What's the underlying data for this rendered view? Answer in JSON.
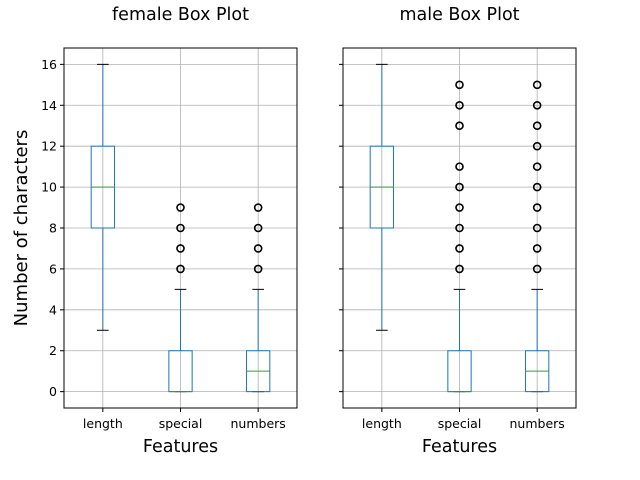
{
  "ylabel": "Number of characters",
  "colors": {
    "box": "#1f77b4",
    "median": "#2ca02c",
    "grid": "#b0b0b0",
    "axes": "#000000",
    "background": "#ffffff"
  },
  "chart_data": [
    {
      "type": "box",
      "title": "female Box Plot",
      "xlabel": "Features",
      "ylabel": "Number of characters",
      "ylim": [
        -0.8,
        16.8
      ],
      "yticks": [
        0,
        2,
        4,
        6,
        8,
        10,
        12,
        14,
        16
      ],
      "grid": true,
      "categories": [
        "length",
        "special",
        "numbers"
      ],
      "boxes": [
        {
          "whisker_low": 3,
          "q1": 8,
          "median": 10,
          "q3": 12,
          "whisker_high": 16,
          "outliers": []
        },
        {
          "whisker_low": 0,
          "q1": 0,
          "median": 0,
          "q3": 2,
          "whisker_high": 5,
          "outliers": [
            6,
            7,
            8,
            9
          ]
        },
        {
          "whisker_low": 0,
          "q1": 0,
          "median": 1,
          "q3": 2,
          "whisker_high": 5,
          "outliers": [
            6,
            7,
            8,
            9
          ]
        }
      ]
    },
    {
      "type": "box",
      "title": "male Box Plot",
      "xlabel": "Features",
      "ylabel": "",
      "ylim": [
        -0.8,
        16.8
      ],
      "yticks": [
        0,
        2,
        4,
        6,
        8,
        10,
        12,
        14,
        16
      ],
      "grid": true,
      "categories": [
        "length",
        "special",
        "numbers"
      ],
      "boxes": [
        {
          "whisker_low": 3,
          "q1": 8,
          "median": 10,
          "q3": 12,
          "whisker_high": 16,
          "outliers": []
        },
        {
          "whisker_low": 0,
          "q1": 0,
          "median": 0,
          "q3": 2,
          "whisker_high": 5,
          "outliers": [
            6,
            7,
            8,
            9,
            10,
            11,
            13,
            14,
            15
          ]
        },
        {
          "whisker_low": 0,
          "q1": 0,
          "median": 1,
          "q3": 2,
          "whisker_high": 5,
          "outliers": [
            6,
            7,
            8,
            9,
            10,
            11,
            12,
            13,
            14,
            15
          ]
        }
      ]
    }
  ]
}
